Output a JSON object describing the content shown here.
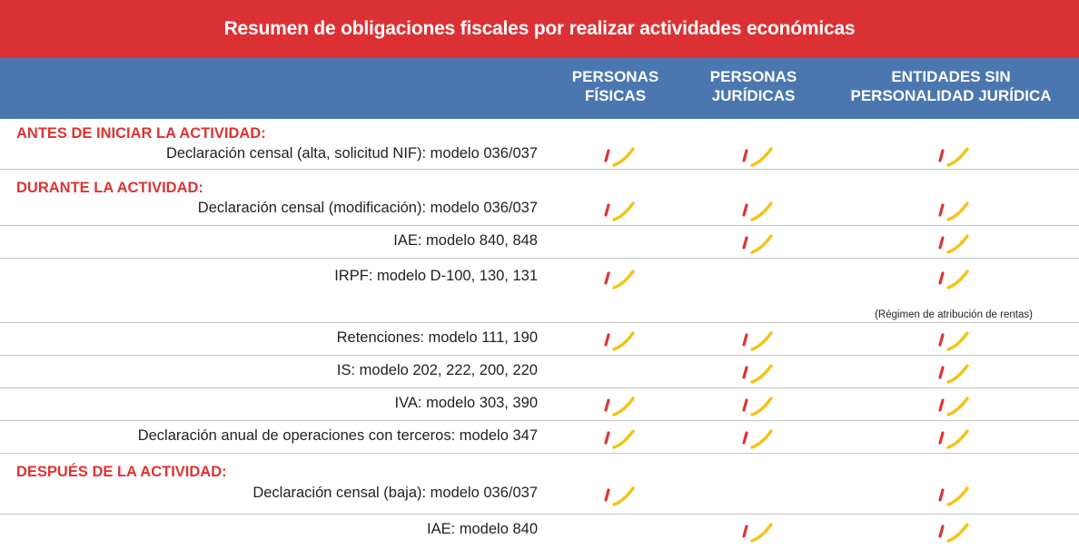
{
  "title": "Resumen de obligaciones fiscales por realizar actividades económicas",
  "columns": [
    "PERSONAS\nFÍSICAS",
    "PERSONAS\nJURÍDICAS",
    "ENTIDADES SIN\nPERSONALIDAD JURÍDICA"
  ],
  "sections": {
    "antes": "ANTES DE INICIAR LA ACTIVIDAD:",
    "durante": "DURANTE LA ACTIVIDAD:",
    "despues": "DESPUÉS DE LA ACTIVIDAD:"
  },
  "check_icon": "check-mark-icon",
  "colors": {
    "title_bg": "#dc3134",
    "header_bg": "#4b77b1",
    "section_text": "#e03233",
    "check_red": "#e03233",
    "check_yellow": "#f3c316"
  },
  "rows": [
    {
      "label": "Declaración censal (alta, solicitud NIF): modelo 036/037",
      "pf": true,
      "pj": true,
      "es": true
    },
    {
      "label": "Declaración censal (modificación): modelo 036/037",
      "pf": true,
      "pj": true,
      "es": true
    },
    {
      "label": "IAE: modelo 840, 848",
      "pf": false,
      "pj": true,
      "es": true
    },
    {
      "label": "IRPF: modelo D-100, 130, 131",
      "pf": true,
      "pj": false,
      "es": true,
      "note": "(Régimen de atribución de rentas)"
    },
    {
      "label": "Retenciones: modelo 111, 190",
      "pf": true,
      "pj": true,
      "es": true
    },
    {
      "label": "IS: modelo 202, 222, 200, 220",
      "pf": false,
      "pj": true,
      "es": true
    },
    {
      "label": "IVA: modelo 303, 390",
      "pf": true,
      "pj": true,
      "es": true
    },
    {
      "label": "Declaración anual de operaciones con terceros: modelo 347",
      "pf": true,
      "pj": true,
      "es": true
    },
    {
      "label": "Declaración censal (baja): modelo 036/037",
      "pf": true,
      "pj": false,
      "es": true
    },
    {
      "label": "IAE: modelo 840",
      "pf": false,
      "pj": true,
      "es": true
    }
  ]
}
